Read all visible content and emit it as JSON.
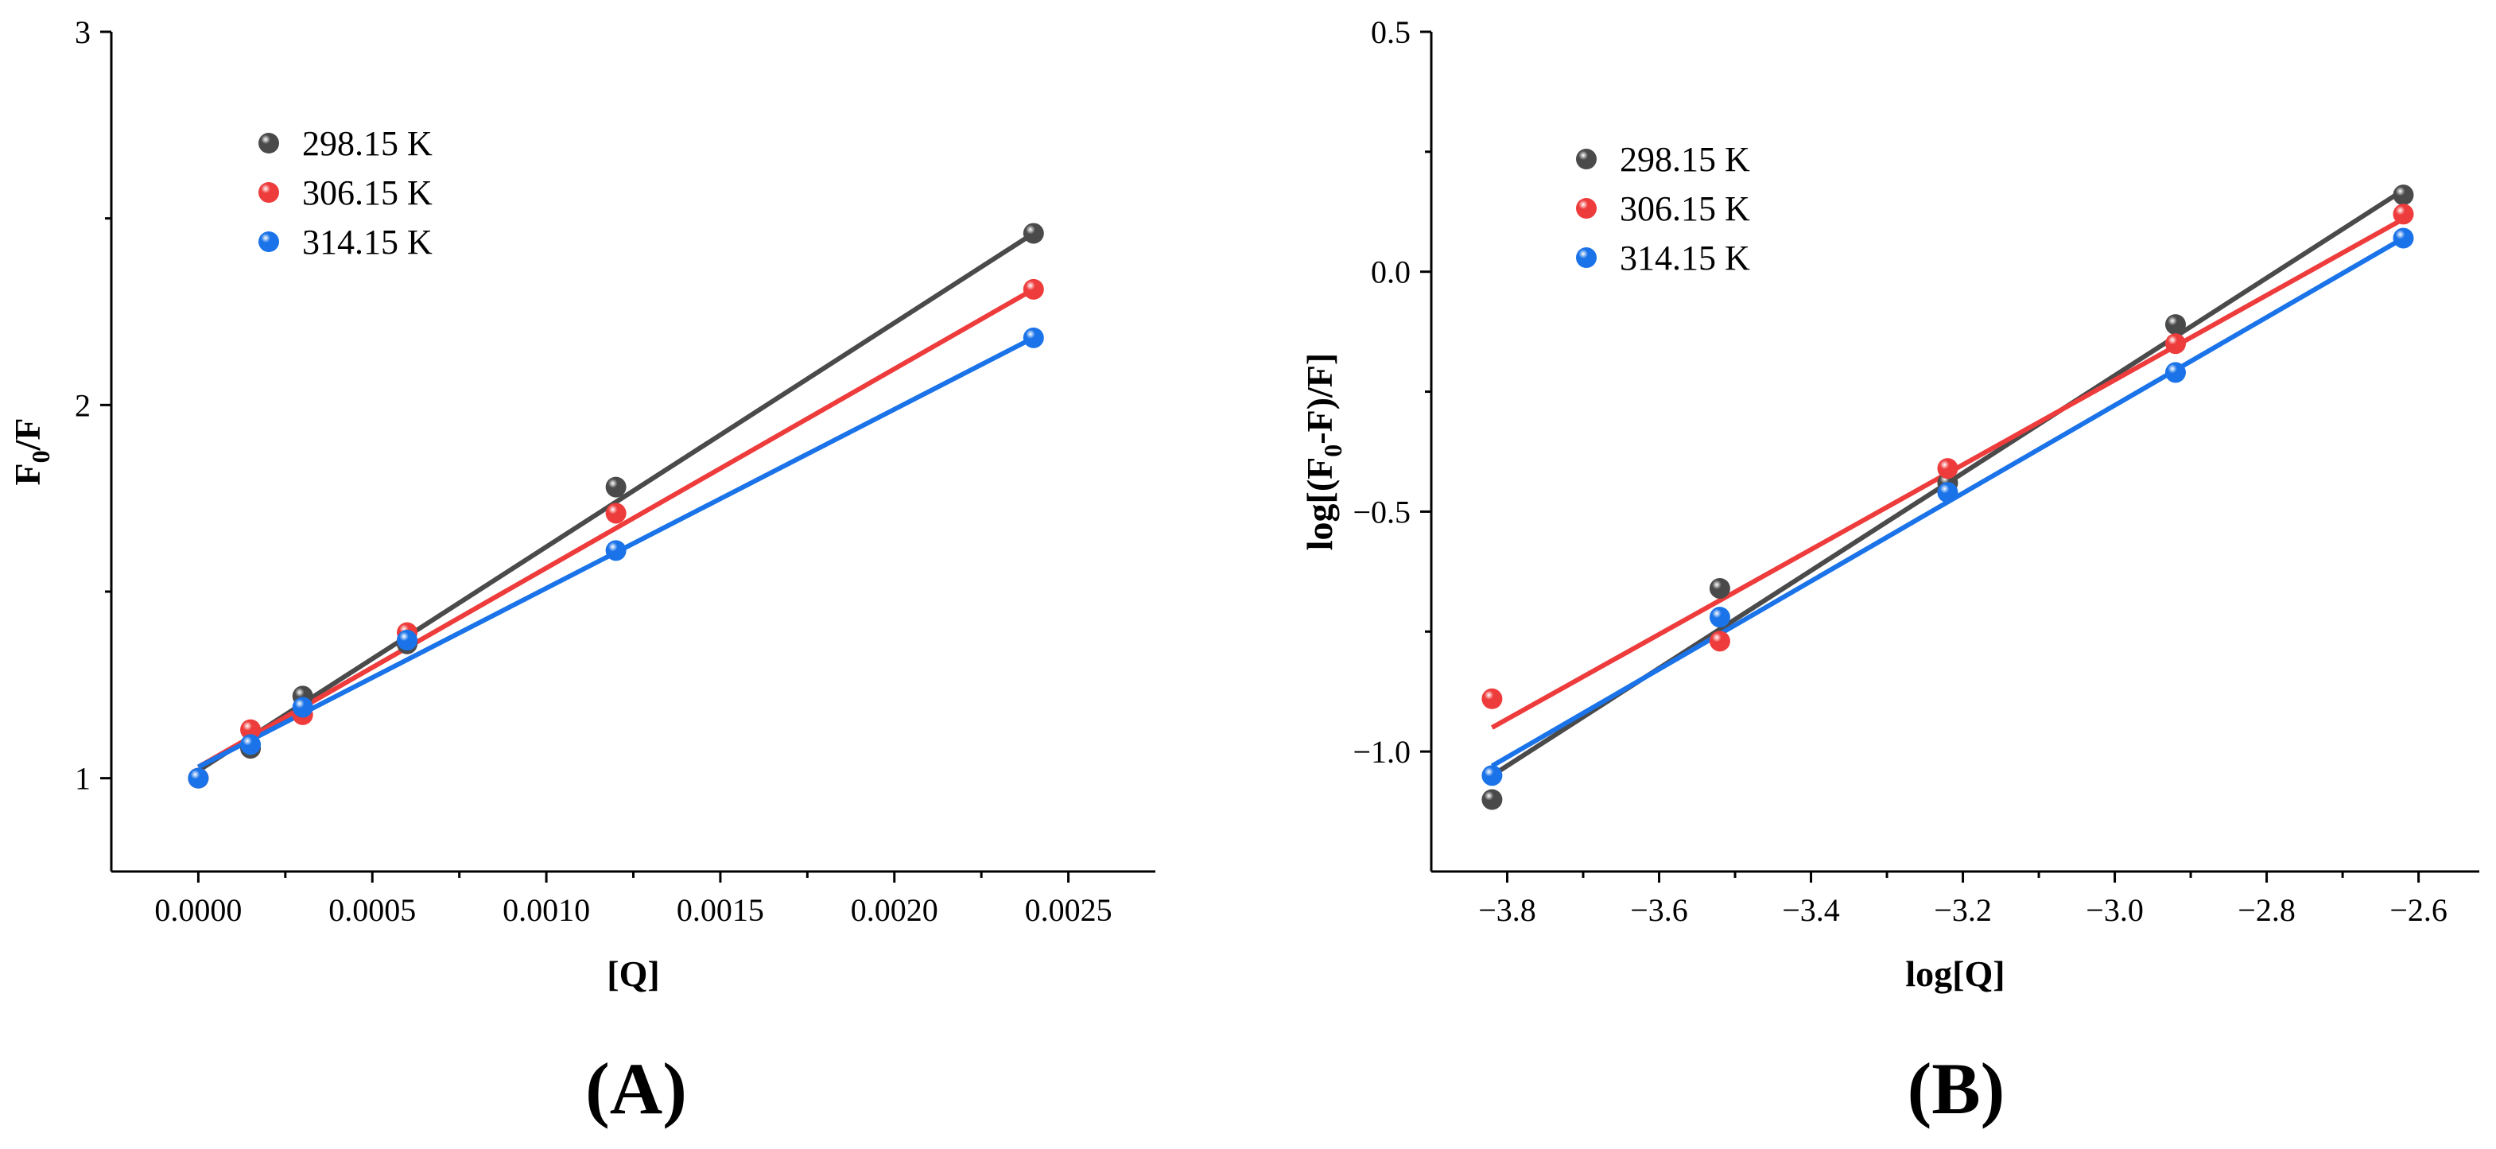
{
  "chart_data": [
    {
      "panel_label": "(A)",
      "type": "scatter",
      "xlabel": "[Q]",
      "ylabel": {
        "base": "F",
        "sub": "0",
        "rest": "/F"
      },
      "xlim": [
        -0.00025,
        0.00275
      ],
      "ylim": [
        0.75,
        3.0
      ],
      "x_ticks": [
        0.0,
        0.0005,
        0.001,
        0.0015,
        0.002,
        0.0025
      ],
      "x_tick_labels": [
        "0.0000",
        "0.0005",
        "0.0010",
        "0.0015",
        "0.0020",
        "0.0025"
      ],
      "y_ticks": [
        1,
        2,
        3
      ],
      "y_tick_labels": [
        "1",
        "2",
        "3"
      ],
      "grid": false,
      "legend_placement": "top-left",
      "series": [
        {
          "name": "298.15 K",
          "color": "#4a4a4a",
          "x": [
            0.0,
            0.00015,
            0.0003,
            0.0006,
            0.0012,
            0.0024
          ],
          "y": [
            1.0,
            1.08,
            1.22,
            1.36,
            1.78,
            2.46
          ],
          "fit": {
            "x": [
              0.0,
              0.0024
            ],
            "y": [
              1.02,
              2.46
            ]
          }
        },
        {
          "name": "306.15 K",
          "color": "#ee3b3b",
          "x": [
            0.0,
            0.00015,
            0.0003,
            0.0006,
            0.0012,
            0.0024
          ],
          "y": [
            1.0,
            1.13,
            1.17,
            1.39,
            1.71,
            2.31
          ],
          "fit": {
            "x": [
              0.0,
              0.0024
            ],
            "y": [
              1.03,
              2.31
            ]
          }
        },
        {
          "name": "314.15 K",
          "color": "#1a73e8",
          "x": [
            0.0,
            0.00015,
            0.0003,
            0.0006,
            0.0012,
            0.0024
          ],
          "y": [
            1.0,
            1.09,
            1.19,
            1.37,
            1.61,
            2.18
          ],
          "fit": {
            "x": [
              0.0,
              0.0024
            ],
            "y": [
              1.03,
              2.18
            ]
          }
        }
      ]
    },
    {
      "panel_label": "(B)",
      "type": "scatter",
      "xlabel": "log[Q]",
      "ylabel": {
        "base": "log[(F",
        "sub": "0",
        "rest": "-F)/F]"
      },
      "xlim": [
        -3.9,
        -2.52
      ],
      "ylim": [
        -1.25,
        0.5
      ],
      "x_ticks": [
        -3.8,
        -3.6,
        -3.4,
        -3.2,
        -3.0,
        -2.8,
        -2.6
      ],
      "x_tick_labels": [
        "−3.8",
        "−3.6",
        "−3.4",
        "−3.2",
        "−3.0",
        "−2.8",
        "−2.6"
      ],
      "y_ticks": [
        -1.0,
        -0.5,
        0.0,
        0.5
      ],
      "y_tick_labels": [
        "−1.0",
        "−0.5",
        "0.0",
        "0.5"
      ],
      "grid": false,
      "legend_placement": "top-left",
      "series": [
        {
          "name": "298.15 K",
          "color": "#4a4a4a",
          "x": [
            -3.82,
            -3.52,
            -3.22,
            -2.92,
            -2.62
          ],
          "y": [
            -1.1,
            -0.66,
            -0.44,
            -0.11,
            0.16
          ],
          "fit": {
            "x": [
              -3.82,
              -2.62
            ],
            "y": [
              -1.05,
              0.17
            ]
          }
        },
        {
          "name": "306.15 K",
          "color": "#ee3b3b",
          "x": [
            -3.82,
            -3.52,
            -3.22,
            -2.92,
            -2.62
          ],
          "y": [
            -0.89,
            -0.77,
            -0.41,
            -0.15,
            0.12
          ],
          "fit": {
            "x": [
              -3.82,
              -2.62
            ],
            "y": [
              -0.95,
              0.11
            ]
          }
        },
        {
          "name": "314.15 K",
          "color": "#1a73e8",
          "x": [
            -3.82,
            -3.52,
            -3.22,
            -2.92,
            -2.62
          ],
          "y": [
            -1.05,
            -0.72,
            -0.46,
            -0.21,
            0.07
          ],
          "fit": {
            "x": [
              -3.82,
              -2.62
            ],
            "y": [
              -1.03,
              0.07
            ]
          }
        }
      ]
    }
  ]
}
